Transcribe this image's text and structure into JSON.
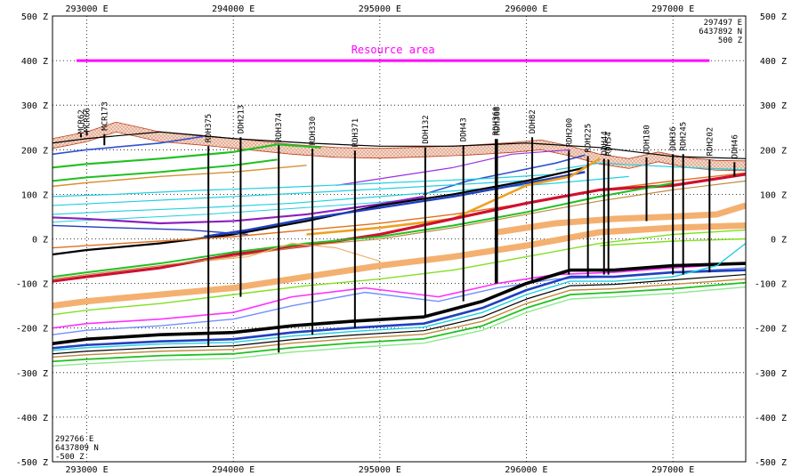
{
  "chart_data": {
    "type": "line",
    "title": "",
    "xlabel": "",
    "ylabel": "",
    "xlim": [
      292766,
      297497
    ],
    "ylim": [
      -500,
      500
    ],
    "grid": true,
    "x_ticks": [
      293000,
      294000,
      295000,
      296000,
      297000
    ],
    "x_tick_labels": [
      "293000 E",
      "294000 E",
      "295000 E",
      "296000 E",
      "297000 E"
    ],
    "y_ticks": [
      500,
      400,
      300,
      200,
      100,
      0,
      -100,
      -200,
      -300,
      -400,
      -500
    ],
    "y_tick_labels": [
      "500 Z",
      "400 Z",
      "300 Z",
      "200 Z",
      "100 Z",
      "0 Z",
      "-100 Z",
      "-200 Z",
      "-300 Z",
      "-400 Z",
      "-500 Z"
    ],
    "corner_top_right": [
      "297497 E",
      "6437892 N",
      "500 Z"
    ],
    "corner_bottom_left": [
      "292766 E",
      "6437809 N",
      "-500 Z"
    ],
    "resource_area": {
      "label": "Resource area",
      "x": [
        292930,
        297250
      ],
      "y": 400,
      "color": "#ff00ff"
    },
    "drillholes": [
      {
        "name": "MCR62",
        "x": 292960,
        "top": 228,
        "bottom": 236
      },
      {
        "name": "MCR66",
        "x": 293000,
        "top": 232,
        "bottom": 240
      },
      {
        "name": "MCR173",
        "x": 293120,
        "top": 235,
        "bottom": 210
      },
      {
        "name": "RDH375",
        "x": 293830,
        "top": 208,
        "bottom": -240
      },
      {
        "name": "DDH213",
        "x": 294050,
        "top": 228,
        "bottom": -130
      },
      {
        "name": "RDH374",
        "x": 294310,
        "top": 210,
        "bottom": -255
      },
      {
        "name": "RDH330",
        "x": 294540,
        "top": 202,
        "bottom": -215
      },
      {
        "name": "RDH371",
        "x": 294830,
        "top": 198,
        "bottom": -200
      },
      {
        "name": "DDH132",
        "x": 295310,
        "top": 205,
        "bottom": -175
      },
      {
        "name": "DDH43",
        "x": 295570,
        "top": 210,
        "bottom": -140
      },
      {
        "name": "RDH360",
        "x": 295790,
        "top": 224,
        "bottom": -100
      },
      {
        "name": "RDH368",
        "x": 295800,
        "top": 224,
        "bottom": -100
      },
      {
        "name": "DDH82",
        "x": 296040,
        "top": 228,
        "bottom": -95
      },
      {
        "name": "RDH200",
        "x": 296290,
        "top": 198,
        "bottom": -80
      },
      {
        "name": "RDH225",
        "x": 296420,
        "top": 186,
        "bottom": -85
      },
      {
        "name": "DDH44",
        "x": 296530,
        "top": 180,
        "bottom": -80
      },
      {
        "name": "RDH54",
        "x": 296560,
        "top": 178,
        "bottom": -80
      },
      {
        "name": "DDH180",
        "x": 296820,
        "top": 183,
        "bottom": 40
      },
      {
        "name": "DDH36",
        "x": 297000,
        "top": 190,
        "bottom": -80
      },
      {
        "name": "RDH245",
        "x": 297070,
        "top": 190,
        "bottom": -80
      },
      {
        "name": "RDH202",
        "x": 297250,
        "top": 178,
        "bottom": -75
      },
      {
        "name": "DDH46",
        "x": 297420,
        "top": 172,
        "bottom": 140
      }
    ],
    "topography": {
      "x": [
        292766,
        293000,
        293200,
        293500,
        293800,
        294100,
        294400,
        294700,
        295000,
        295300,
        295600,
        295900,
        296100,
        296300,
        296500,
        296700,
        296900,
        297100,
        297300,
        297497
      ],
      "y": [
        225,
        240,
        262,
        240,
        232,
        222,
        212,
        205,
        203,
        206,
        210,
        216,
        222,
        208,
        190,
        180,
        195,
        182,
        176,
        175
      ]
    },
    "series": [
      {
        "color": "#000000",
        "width": 1.2,
        "x": [
          292766,
          293000,
          293500,
          294000,
          294500,
          295000,
          295500,
          296000,
          296500,
          297000,
          297497
        ],
        "y": [
          215,
          225,
          240,
          225,
          215,
          208,
          208,
          215,
          205,
          185,
          180
        ]
      },
      {
        "color": "#3050d0",
        "width": 1.6,
        "x": [
          292766,
          293000,
          293500,
          293800
        ],
        "y": [
          190,
          200,
          215,
          230
        ]
      },
      {
        "color": "#3050d0",
        "width": 1.6,
        "x": [
          295300,
          295600,
          295900,
          296200,
          296400
        ],
        "y": [
          100,
          130,
          150,
          170,
          188
        ]
      },
      {
        "color": "#9a30e0",
        "width": 1.2,
        "x": [
          294700,
          295100,
          295500,
          295900,
          296300
        ],
        "y": [
          120,
          140,
          160,
          190,
          200
        ]
      },
      {
        "color": "#20c020",
        "width": 2.2,
        "x": [
          292766,
          293000,
          293500,
          294000,
          294300,
          294600
        ],
        "y": [
          160,
          168,
          180,
          195,
          212,
          205
        ]
      },
      {
        "color": "#20c020",
        "width": 2.0,
        "x": [
          292766,
          293000,
          293500,
          294000,
          294300
        ],
        "y": [
          130,
          138,
          150,
          165,
          178
        ]
      },
      {
        "color": "#d89030",
        "width": 1.4,
        "x": [
          292766,
          293000,
          293500,
          294000,
          294500
        ],
        "y": [
          118,
          126,
          140,
          150,
          165
        ]
      },
      {
        "color": "#20d0e0",
        "width": 1.2,
        "x": [
          292766,
          293200,
          293700,
          294300,
          295000,
          295700,
          296200
        ],
        "y": [
          95,
          100,
          108,
          115,
          125,
          135,
          145
        ]
      },
      {
        "color": "#20d0e0",
        "width": 1.2,
        "x": [
          292766,
          293200,
          293700,
          294300,
          295000,
          295700,
          296200
        ],
        "y": [
          75,
          82,
          90,
          100,
          112,
          125,
          135
        ]
      },
      {
        "color": "#20d0e0",
        "width": 1.2,
        "x": [
          292766,
          293200,
          293800,
          294400,
          295000,
          295600,
          296200,
          296700
        ],
        "y": [
          55,
          62,
          70,
          80,
          95,
          110,
          125,
          140
        ]
      },
      {
        "color": "#20d0e0",
        "width": 1.0,
        "x": [
          292766,
          293200,
          293800,
          294400,
          295000,
          295600
        ],
        "y": [
          38,
          45,
          55,
          68,
          82,
          100
        ]
      },
      {
        "color": "#20d0e0",
        "width": 1.2,
        "x": [
          296200,
          296500,
          296800,
          297100,
          297497
        ],
        "y": [
          155,
          170,
          165,
          160,
          155
        ]
      },
      {
        "color": "#8b20c0",
        "width": 2.2,
        "x": [
          292766,
          293000,
          293500,
          294000,
          294500,
          295000,
          295300
        ],
        "y": [
          48,
          45,
          35,
          40,
          55,
          78,
          95
        ]
      },
      {
        "color": "#000000",
        "width": 2.2,
        "x": [
          292766,
          293000,
          293500,
          294000,
          294500,
          295000,
          295500,
          296000,
          296400
        ],
        "y": [
          -35,
          -25,
          -10,
          10,
          40,
          75,
          100,
          130,
          160
        ]
      },
      {
        "color": "#2040c0",
        "width": 2.4,
        "x": [
          293800,
          294100,
          294500,
          295000,
          295500,
          296000,
          296400
        ],
        "y": [
          5,
          20,
          45,
          70,
          95,
          125,
          150
        ]
      },
      {
        "color": "#2040c0",
        "width": 1.4,
        "x": [
          292766,
          293200,
          293700,
          294100
        ],
        "y": [
          30,
          25,
          20,
          10
        ]
      },
      {
        "color": "#e07020",
        "width": 1.4,
        "x": [
          292766,
          293000,
          293500,
          294000,
          294500,
          295000,
          295500,
          296000,
          296500,
          297000,
          297497
        ],
        "y": [
          -20,
          -15,
          -5,
          5,
          20,
          35,
          55,
          80,
          110,
          130,
          148
        ]
      },
      {
        "color": "#f0a020",
        "width": 2.6,
        "x": [
          294500,
          295000,
          295500,
          296000,
          296300,
          296500
        ],
        "y": [
          10,
          25,
          45,
          120,
          140,
          180
        ]
      },
      {
        "color": "#d01030",
        "width": 3.2,
        "x": [
          292766,
          293000,
          293500,
          294000,
          294500,
          295000,
          295500,
          296000,
          296500,
          297000,
          297497
        ],
        "y": [
          -95,
          -85,
          -65,
          -35,
          -15,
          10,
          45,
          80,
          110,
          120,
          145
        ]
      },
      {
        "color": "#20c020",
        "width": 2.0,
        "x": [
          292766,
          293000,
          293500,
          294000,
          294500,
          295000,
          295500,
          296000,
          296500,
          297000
        ],
        "y": [
          -85,
          -75,
          -55,
          -30,
          -10,
          5,
          30,
          60,
          95,
          125
        ]
      },
      {
        "color": "#c08a40",
        "width": 1.2,
        "x": [
          292766,
          293000,
          293500,
          294000,
          294500,
          295000,
          295500,
          296000,
          296500,
          297000,
          297497
        ],
        "y": [
          -90,
          -80,
          -60,
          -40,
          -15,
          0,
          25,
          55,
          85,
          110,
          130
        ]
      },
      {
        "color": "#f4b070",
        "width": 7.0,
        "x": [
          292766,
          293000,
          293500,
          294000,
          294500,
          295000,
          295500,
          296000,
          296500,
          297000,
          297497
        ],
        "y": [
          -150,
          -140,
          -125,
          -110,
          -85,
          -60,
          -40,
          -15,
          15,
          25,
          30
        ]
      },
      {
        "color": "#f4b070",
        "width": 7.0,
        "x": [
          295800,
          296200,
          296600,
          297000,
          297300,
          297497
        ],
        "y": [
          15,
          35,
          45,
          50,
          55,
          75
        ]
      },
      {
        "color": "#f4b070",
        "width": 1.2,
        "x": [
          293800,
          294100,
          294400,
          294700,
          295000
        ],
        "y": [
          -50,
          -40,
          -10,
          -20,
          -50
        ]
      },
      {
        "color": "#80e020",
        "width": 1.4,
        "x": [
          292766,
          293000,
          293500,
          294000,
          294500,
          295000,
          295500,
          296000,
          296500,
          297000,
          297497
        ],
        "y": [
          -170,
          -160,
          -145,
          -125,
          -105,
          -90,
          -70,
          -40,
          -10,
          10,
          20
        ]
      },
      {
        "color": "#80e020",
        "width": 1.4,
        "x": [
          296500,
          297000,
          297497
        ],
        "y": [
          -15,
          -5,
          0
        ]
      },
      {
        "color": "#ff30ff",
        "width": 1.6,
        "x": [
          292766,
          293000,
          293500,
          294000,
          294400,
          294900,
          295400,
          295800,
          296200,
          296600,
          297000,
          297497
        ],
        "y": [
          -200,
          -190,
          -180,
          -165,
          -130,
          -110,
          -130,
          -100,
          -80,
          -75,
          -65,
          -55
        ]
      },
      {
        "color": "#7090ff",
        "width": 1.4,
        "x": [
          292766,
          293000,
          293500,
          294000,
          294400,
          294900,
          295400,
          295800,
          296200,
          296600,
          297000,
          297497
        ],
        "y": [
          -215,
          -205,
          -195,
          -180,
          -150,
          -120,
          -140,
          -110,
          -90,
          -85,
          -75,
          -65
        ]
      },
      {
        "color": "#000000",
        "width": 3.6,
        "x": [
          292766,
          293000,
          293500,
          294000,
          294400,
          294800,
          295300,
          295700,
          296000,
          296300,
          296600,
          297000,
          297497
        ],
        "y": [
          -235,
          -225,
          -215,
          -210,
          -195,
          -185,
          -175,
          -140,
          -100,
          -70,
          -70,
          -60,
          -55
        ]
      },
      {
        "color": "#2040c0",
        "width": 2.6,
        "x": [
          292766,
          293000,
          293500,
          294000,
          294400,
          294800,
          295300,
          295700,
          296000,
          296300,
          296600,
          297000,
          297497
        ],
        "y": [
          -245,
          -238,
          -230,
          -225,
          -210,
          -200,
          -190,
          -155,
          -115,
          -85,
          -85,
          -75,
          -70
        ]
      },
      {
        "color": "#20d0e0",
        "width": 1.4,
        "x": [
          292766,
          293000,
          293500,
          294000,
          294400,
          294800,
          295300,
          295700,
          296000,
          296300,
          296600,
          297000,
          297300,
          297497
        ],
        "y": [
          -250,
          -244,
          -236,
          -232,
          -218,
          -208,
          -198,
          -165,
          -125,
          -95,
          -95,
          -85,
          -60,
          -10
        ]
      },
      {
        "color": "#000000",
        "width": 1.2,
        "x": [
          292766,
          293000,
          293500,
          294000,
          294400,
          294800,
          295300,
          295700,
          296000,
          296300,
          296600,
          297000,
          297497
        ],
        "y": [
          -258,
          -252,
          -244,
          -240,
          -226,
          -216,
          -206,
          -175,
          -135,
          -105,
          -102,
          -92,
          -80
        ]
      },
      {
        "color": "#c08a40",
        "width": 1.4,
        "x": [
          292766,
          293000,
          293500,
          294000,
          294400,
          294800,
          295300,
          295700,
          296000,
          296300,
          296600,
          297000,
          297497
        ],
        "y": [
          -265,
          -260,
          -252,
          -248,
          -234,
          -224,
          -214,
          -185,
          -145,
          -115,
          -112,
          -102,
          -90
        ]
      },
      {
        "color": "#20c020",
        "width": 1.8,
        "x": [
          292766,
          293000,
          293500,
          294000,
          294400,
          294800,
          295300,
          295700,
          296000,
          296300,
          296600,
          297000,
          297497
        ],
        "y": [
          -275,
          -270,
          -262,
          -258,
          -244,
          -234,
          -224,
          -195,
          -155,
          -125,
          -120,
          -112,
          -98
        ]
      },
      {
        "color": "#90e890",
        "width": 1.4,
        "x": [
          292766,
          293000,
          293500,
          294000,
          294400,
          294800,
          295300,
          295700,
          296000,
          296300,
          296600,
          297000,
          297497
        ],
        "y": [
          -285,
          -280,
          -272,
          -268,
          -254,
          -244,
          -234,
          -205,
          -165,
          -135,
          -130,
          -122,
          -108
        ]
      }
    ]
  }
}
